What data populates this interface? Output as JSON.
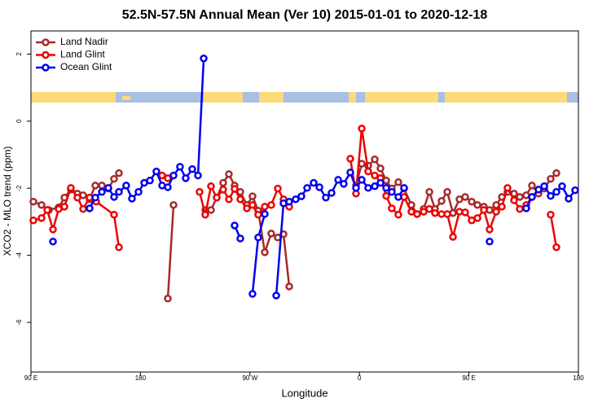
{
  "chart_data": {
    "type": "line",
    "title": "52.5N-57.5N Annual Mean (Ver 10)   2015-01-01 to 2020-12-18",
    "x_label": "Longitude",
    "y_label": "XCO2 - MLO trend (ppm)",
    "xlim": [
      90,
      540
    ],
    "ylim": [
      -7.48,
      2.69
    ],
    "xticks": [
      {
        "value": 90,
        "label": "90 E"
      },
      {
        "value": 180,
        "label": "180"
      },
      {
        "value": 270,
        "label": "90 W"
      },
      {
        "value": 360,
        "label": "0"
      },
      {
        "value": 450,
        "label": "90 E"
      },
      {
        "value": 540,
        "label": "180"
      }
    ],
    "yticks": [
      2,
      0,
      -2,
      -4,
      -6
    ],
    "legend": "top-left",
    "series": [
      {
        "name": "Land Nadir",
        "color": "#a52a2a",
        "x": [
          92.0,
          98.7,
          104.7,
          112.8,
          117.5,
          122.8,
          128.2,
          132.9,
          138.2,
          142.9,
          148.3,
          153.6,
          158.3,
          162.3,
          null,
          202.5,
          207.2,
          null,
          233.3,
          238.0,
          242.7,
          248.0,
          252.7,
          257.4,
          262.1,
          267.5,
          272.1,
          276.8,
          282.2,
          287.5,
          292.9,
          297.6,
          302.3,
          null,
          357.2,
          361.9,
          367.2,
          372.6,
          377.3,
          382.0,
          386.6,
          392.0,
          396.7,
          402.7,
          407.4,
          412.8,
          417.5,
          422.1,
          427.5,
          432.2,
          436.9,
          442.2,
          446.9,
          452.3,
          457.0,
          462.3,
          467.0,
          472.4,
          477.1,
          481.7,
          487.1,
          491.8,
          497.1,
          501.8,
          507.2,
          511.9,
          517.2,
          521.9
        ],
        "values": [
          -2.4,
          -2.5,
          -2.65,
          -2.57,
          -2.28,
          -2.04,
          -2.16,
          -2.21,
          -2.33,
          -1.92,
          -1.92,
          -2.01,
          -1.72,
          -1.55,
          null,
          -5.29,
          -2.5,
          null,
          -2.65,
          -2.65,
          -2.28,
          -1.84,
          -1.58,
          -1.92,
          -2.11,
          -2.5,
          -2.24,
          -2.67,
          -3.91,
          -3.35,
          -3.47,
          -3.37,
          -4.93,
          null,
          -1.92,
          -1.27,
          -1.33,
          -1.14,
          -1.41,
          -1.77,
          -2.01,
          -1.82,
          -2.01,
          -2.5,
          -2.77,
          -2.62,
          -2.11,
          -2.62,
          -2.38,
          -2.11,
          -2.74,
          -2.33,
          -2.26,
          -2.4,
          -2.5,
          -2.55,
          -2.65,
          -2.5,
          -2.26,
          -2.11,
          -2.16,
          -2.26,
          -2.21,
          -1.92,
          -2.16,
          -2.01,
          -1.72,
          -1.55
        ]
      },
      {
        "name": "Land Glint",
        "color": "#ee0000",
        "x": [
          92.0,
          98.7,
          103.4,
          108.1,
          112.8,
          117.5,
          122.8,
          128.2,
          132.9,
          138.2,
          143.6,
          158.3,
          162.3,
          null,
          197.8,
          202.5,
          null,
          228.6,
          233.3,
          238.0,
          242.7,
          248.0,
          252.7,
          257.4,
          262.1,
          267.5,
          272.1,
          276.8,
          282.2,
          287.5,
          292.9,
          297.6,
          302.3,
          null,
          352.5,
          357.2,
          361.9,
          367.2,
          372.6,
          377.3,
          382.0,
          386.6,
          392.0,
          396.7,
          402.7,
          407.4,
          412.8,
          417.5,
          422.1,
          427.5,
          432.2,
          436.9,
          442.2,
          446.9,
          452.3,
          457.0,
          462.3,
          467.0,
          472.4,
          477.1,
          481.7,
          487.1,
          491.8,
          497.1,
          501.8,
          null,
          517.2,
          521.9
        ],
        "values": [
          -2.96,
          -2.89,
          -2.65,
          -3.23,
          -2.62,
          -2.55,
          -1.99,
          -2.28,
          -2.62,
          -2.28,
          -2.4,
          -2.79,
          -3.76,
          null,
          -1.62,
          -1.7,
          null,
          -2.11,
          -2.79,
          -1.94,
          -2.28,
          -2.04,
          -2.33,
          -2.02,
          -2.33,
          -2.6,
          -2.5,
          -2.79,
          -2.55,
          -2.5,
          -2.01,
          -2.33,
          -2.55,
          null,
          -1.12,
          -2.16,
          -0.22,
          -1.5,
          -1.62,
          -1.7,
          -2.23,
          -2.6,
          -2.79,
          -2.26,
          -2.7,
          -2.77,
          -2.7,
          -2.62,
          -2.74,
          -2.77,
          -2.77,
          -3.45,
          -2.7,
          -2.72,
          -2.96,
          -2.89,
          -2.65,
          -3.23,
          -2.7,
          -2.55,
          -1.99,
          -2.36,
          -2.62,
          -2.5,
          -2.26,
          null,
          -2.79,
          -3.76
        ]
      },
      {
        "name": "Ocean Glint",
        "color": "#0000ee",
        "x": [
          108.1,
          null,
          138.2,
          142.9,
          148.3,
          153.6,
          158.3,
          162.3,
          168.3,
          173.0,
          178.4,
          183.1,
          187.8,
          193.1,
          197.8,
          202.5,
          207.2,
          212.5,
          217.2,
          222.6,
          227.3,
          232.0,
          null,
          257.4,
          262.1,
          null,
          272.1,
          276.8,
          282.2,
          null,
          291.6,
          297.6,
          302.3,
          307.6,
          312.3,
          317.0,
          322.4,
          327.1,
          332.4,
          337.1,
          342.5,
          347.1,
          352.5,
          357.2,
          361.9,
          367.2,
          372.6,
          377.3,
          382.0,
          386.6,
          392.0,
          396.7,
          null,
          467.0,
          null,
          497.1,
          501.8,
          507.2,
          511.9,
          517.2,
          521.9,
          526.6,
          532.0,
          537.3
        ],
        "values": [
          -3.59,
          null,
          -2.6,
          -2.28,
          -2.11,
          -1.99,
          -2.26,
          -2.11,
          -1.92,
          -2.31,
          -2.11,
          -1.84,
          -1.77,
          -1.5,
          -1.92,
          -1.97,
          -1.62,
          -1.36,
          -1.7,
          -1.43,
          -1.62,
          1.87,
          null,
          -3.11,
          -3.5,
          null,
          -5.15,
          -3.47,
          -2.77,
          null,
          -5.2,
          -2.45,
          -2.4,
          -2.33,
          -2.24,
          -1.99,
          -1.84,
          -1.97,
          -2.28,
          -2.14,
          -1.75,
          -1.87,
          -1.53,
          -1.99,
          -1.75,
          -1.99,
          -1.94,
          -1.84,
          -1.99,
          -2.11,
          -2.26,
          -1.99,
          null,
          -3.59,
          null,
          -2.6,
          -2.26,
          -2.04,
          -1.94,
          -2.23,
          -2.11,
          -1.94,
          -2.31,
          -2.06
        ]
      }
    ]
  }
}
